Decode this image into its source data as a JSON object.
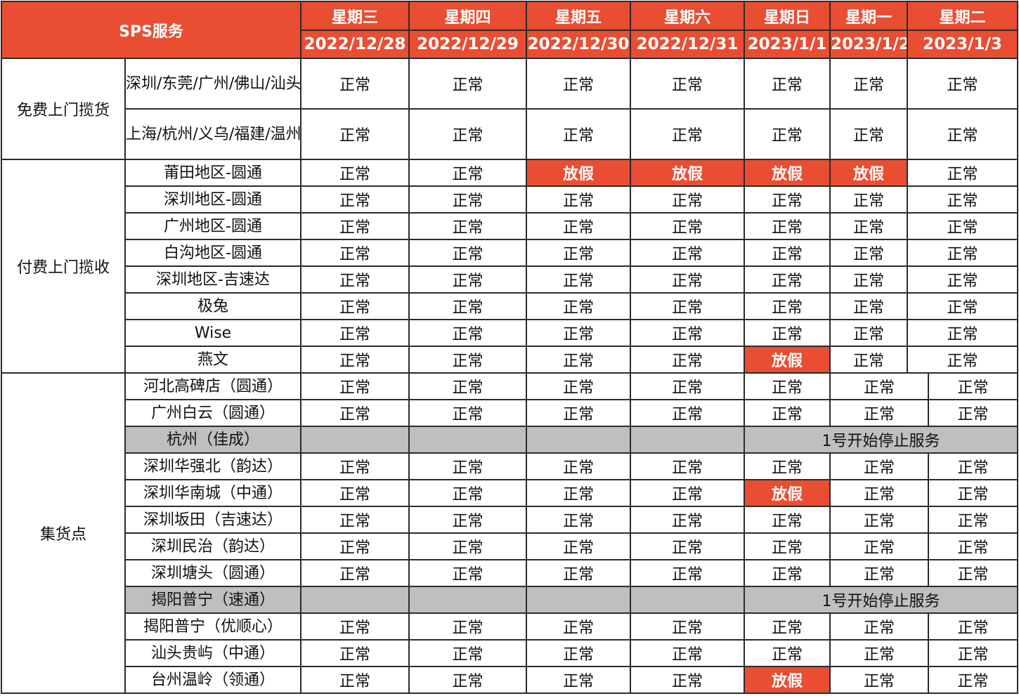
{
  "header": {
    "title": "SPS服务",
    "days": [
      {
        "weekday": "星期三",
        "date": "2022/12/28"
      },
      {
        "weekday": "星期四",
        "date": "2022/12/29"
      },
      {
        "weekday": "星期五",
        "date": "2022/12/30"
      },
      {
        "weekday": "星期六",
        "date": "2022/12/31"
      },
      {
        "weekday": "星期日",
        "date": "2023/1/1"
      },
      {
        "weekday": "星期一",
        "date": "2023/1/2"
      },
      {
        "weekday": "星期二",
        "date": "2023/1/3"
      }
    ]
  },
  "colors": {
    "accent": "#E94E33",
    "gray": "#BFBFBF"
  },
  "groups": [
    {
      "name": "免费上门揽货",
      "rows": [
        {
          "name": "深圳/东莞/广州/佛山/汕头/揭阳/义乌-自营",
          "values": [
            "正常",
            "正常",
            "正常",
            "正常",
            "正常",
            "正常",
            "正常"
          ]
        },
        {
          "name": "上海/杭州/义乌/福建/温州/台州-WISE",
          "values": [
            "正常",
            "正常",
            "正常",
            "正常",
            "正常",
            "正常",
            "正常"
          ]
        }
      ]
    },
    {
      "name": "付费上门揽收",
      "rows": [
        {
          "name": "莆田地区-圆通",
          "values": [
            "正常",
            "正常",
            "放假",
            "放假",
            "放假",
            "放假",
            "正常"
          ]
        },
        {
          "name": "深圳地区-圆通",
          "values": [
            "正常",
            "正常",
            "正常",
            "正常",
            "正常",
            "正常",
            "正常"
          ]
        },
        {
          "name": "广州地区-圆通",
          "values": [
            "正常",
            "正常",
            "正常",
            "正常",
            "正常",
            "正常",
            "正常"
          ]
        },
        {
          "name": "白沟地区-圆通",
          "values": [
            "正常",
            "正常",
            "正常",
            "正常",
            "正常",
            "正常",
            "正常"
          ]
        },
        {
          "name": "深圳地区-吉速达",
          "values": [
            "正常",
            "正常",
            "正常",
            "正常",
            "正常",
            "正常",
            "正常"
          ]
        },
        {
          "name": "极兔",
          "values": [
            "正常",
            "正常",
            "正常",
            "正常",
            "正常",
            "正常",
            "正常"
          ]
        },
        {
          "name": "Wise",
          "values": [
            "正常",
            "正常",
            "正常",
            "正常",
            "正常",
            "正常",
            "正常"
          ]
        },
        {
          "name": "燕文",
          "values": [
            "正常",
            "正常",
            "正常",
            "正常",
            "放假",
            "正常",
            "正常"
          ]
        }
      ]
    },
    {
      "name": "集货点",
      "rows": [
        {
          "name": "河北高碑店（圆通）",
          "values": [
            "正常",
            "正常",
            "正常",
            "正常",
            "正常",
            "正常",
            "正常"
          ]
        },
        {
          "name": "广州白云（圆通）",
          "values": [
            "正常",
            "正常",
            "正常",
            "正常",
            "正常",
            "正常",
            "正常"
          ]
        },
        {
          "name": "杭州（佳成）",
          "values": [
            "",
            "",
            "",
            ""
          ],
          "note": "1号开始停止服务"
        },
        {
          "name": "深圳华强北（韵达）",
          "values": [
            "正常",
            "正常",
            "正常",
            "正常",
            "正常",
            "正常",
            "正常"
          ]
        },
        {
          "name": "深圳华南城（中通）",
          "values": [
            "正常",
            "正常",
            "正常",
            "正常",
            "放假",
            "正常",
            "正常"
          ]
        },
        {
          "name": "深圳坂田（吉速达）",
          "values": [
            "正常",
            "正常",
            "正常",
            "正常",
            "正常",
            "正常",
            "正常"
          ]
        },
        {
          "name": "深圳民治（韵达）",
          "values": [
            "正常",
            "正常",
            "正常",
            "正常",
            "正常",
            "正常",
            "正常"
          ]
        },
        {
          "name": "深圳塘头（圆通）",
          "values": [
            "正常",
            "正常",
            "正常",
            "正常",
            "正常",
            "正常",
            "正常"
          ]
        },
        {
          "name": "揭阳普宁（速通）",
          "values": [
            "",
            "",
            "",
            ""
          ],
          "note": "1号开始停止服务"
        },
        {
          "name": "揭阳普宁（优顺心）",
          "values": [
            "正常",
            "正常",
            "正常",
            "正常",
            "正常",
            "正常",
            "正常"
          ]
        },
        {
          "name": "汕头贵屿（中通）",
          "values": [
            "正常",
            "正常",
            "正常",
            "正常",
            "正常",
            "正常",
            "正常"
          ]
        },
        {
          "name": "台州温岭（领通）",
          "values": [
            "正常",
            "正常",
            "正常",
            "正常",
            "放假",
            "正常",
            "正常"
          ]
        }
      ]
    }
  ]
}
